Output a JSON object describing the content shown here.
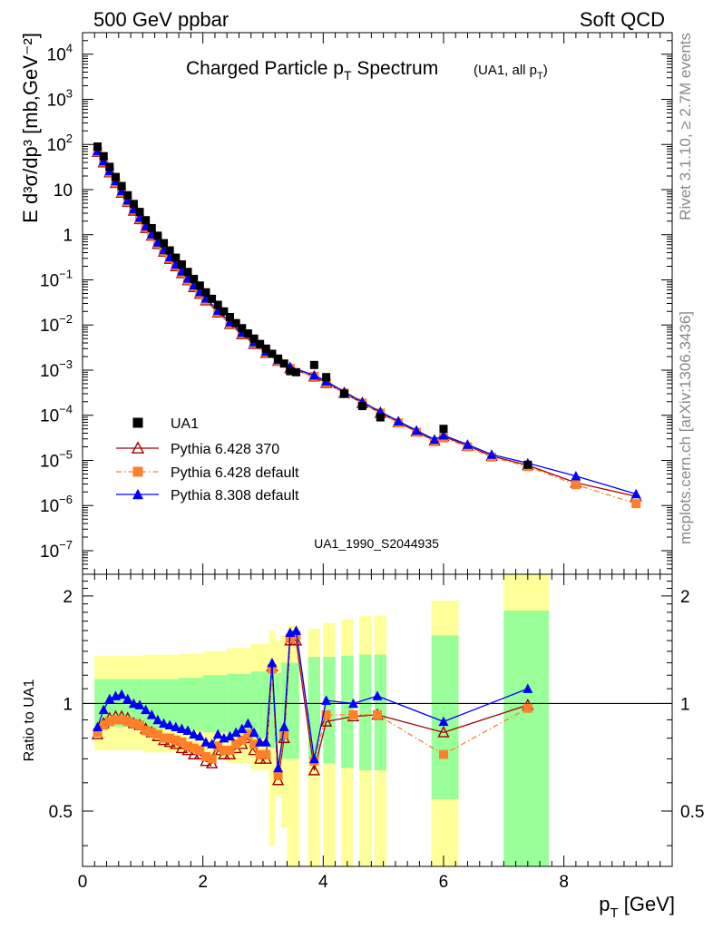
{
  "header": {
    "left": "500 GeV ppbar",
    "right": "Soft QCD"
  },
  "side": {
    "top": "Rivet 3.1.10, ≥ 2.7M events",
    "bottom": "mcplots.cern.ch [arXiv:1306.3436]"
  },
  "chart_data": [
    {
      "type": "scatter",
      "title": "Charged Particle p_T Spectrum",
      "title_note": "(UA1, all p_T)",
      "watermark": "UA1_1990_S2044935",
      "ylabel": "E d³σ/dp³ [mb,GeV⁻²]",
      "yscale": "log",
      "ylim": [
        3e-08,
        30000.0
      ],
      "xlim": [
        0,
        9.8
      ],
      "ytick_exponents": [
        -7,
        -6,
        -5,
        -4,
        -3,
        -2,
        -1,
        0,
        1,
        2,
        3,
        4
      ],
      "legend_position": "bottom-left",
      "series": [
        {
          "name": "UA1",
          "color": "#000000",
          "marker": "square",
          "x": [
            0.25,
            0.35,
            0.45,
            0.55,
            0.65,
            0.75,
            0.85,
            0.95,
            1.05,
            1.15,
            1.25,
            1.35,
            1.45,
            1.55,
            1.65,
            1.75,
            1.85,
            1.95,
            2.05,
            2.15,
            2.25,
            2.35,
            2.45,
            2.55,
            2.65,
            2.75,
            2.85,
            2.95,
            3.05,
            3.15,
            3.25,
            3.35,
            3.45,
            3.55,
            3.85,
            4.05,
            4.35,
            4.65,
            4.95,
            6.0,
            7.4
          ],
          "y": [
            90,
            55,
            32,
            19,
            12,
            7.5,
            4.8,
            3.2,
            2.1,
            1.4,
            0.95,
            0.65,
            0.45,
            0.31,
            0.22,
            0.15,
            0.105,
            0.075,
            0.053,
            0.038,
            0.028,
            0.02,
            0.015,
            0.011,
            0.0085,
            0.0065,
            0.005,
            0.0038,
            0.003,
            0.0023,
            0.0018,
            0.0014,
            0.00095,
            0.0009,
            0.0013,
            0.0007,
            0.0003,
            0.00016,
            9e-05,
            5e-05,
            8e-06
          ]
        },
        {
          "name": "Pythia 6.428 370",
          "color": "#a00000",
          "marker": "open-triangle",
          "x": [
            0.25,
            0.35,
            0.45,
            0.55,
            0.65,
            0.75,
            0.85,
            0.95,
            1.05,
            1.15,
            1.25,
            1.35,
            1.45,
            1.55,
            1.65,
            1.75,
            1.85,
            1.95,
            2.05,
            2.25,
            2.45,
            2.65,
            2.85,
            3.05,
            3.25,
            3.45,
            3.85,
            4.05,
            4.35,
            4.65,
            4.95,
            5.25,
            5.55,
            5.85,
            6.0,
            6.4,
            6.8,
            7.4,
            8.2,
            9.2
          ],
          "y": [
            68,
            40,
            24,
            14,
            8.5,
            5.3,
            3.4,
            2.2,
            1.4,
            0.95,
            0.62,
            0.42,
            0.29,
            0.2,
            0.14,
            0.098,
            0.069,
            0.049,
            0.035,
            0.019,
            0.0105,
            0.0062,
            0.0038,
            0.0024,
            0.0016,
            0.0011,
            0.00072,
            0.00052,
            0.00031,
            0.000185,
            0.000112,
            6.95e-05,
            4.35e-05,
            2.75e-05,
            3.4e-05,
            2.1e-05,
            1.25e-05,
            7.8e-06,
            3.2e-06,
            1.6e-06
          ]
        },
        {
          "name": "Pythia 6.428 default",
          "color": "#ff7f2a",
          "marker": "square",
          "dashed": true,
          "x": [
            0.25,
            0.35,
            0.45,
            0.55,
            0.65,
            0.75,
            0.85,
            0.95,
            1.05,
            1.15,
            1.25,
            1.35,
            1.45,
            1.55,
            1.65,
            1.75,
            1.85,
            1.95,
            2.05,
            2.25,
            2.45,
            2.65,
            2.85,
            3.05,
            3.25,
            3.45,
            3.85,
            4.05,
            4.35,
            4.65,
            4.95,
            5.25,
            5.55,
            5.85,
            6.0,
            6.4,
            6.8,
            7.4,
            8.2,
            9.2
          ],
          "y": [
            69,
            41,
            24.5,
            14.3,
            8.7,
            5.4,
            3.5,
            2.25,
            1.45,
            0.97,
            0.64,
            0.43,
            0.3,
            0.205,
            0.145,
            0.1,
            0.071,
            0.05,
            0.036,
            0.0195,
            0.0107,
            0.0063,
            0.0039,
            0.00245,
            0.0016,
            0.0011,
            0.00073,
            0.00053,
            0.00031,
            0.000186,
            0.000112,
            6.8e-05,
            4.2e-05,
            2.6e-05,
            3.15e-05,
            2e-05,
            1.18e-05,
            7.3e-06,
            2.9e-06,
            1.1e-06
          ]
        },
        {
          "name": "Pythia 8.308 default",
          "color": "#0000ff",
          "marker": "triangle",
          "x": [
            0.25,
            0.35,
            0.45,
            0.55,
            0.65,
            0.75,
            0.85,
            0.95,
            1.05,
            1.15,
            1.25,
            1.35,
            1.45,
            1.55,
            1.65,
            1.75,
            1.85,
            1.95,
            2.05,
            2.25,
            2.45,
            2.65,
            2.85,
            3.05,
            3.25,
            3.45,
            3.85,
            4.05,
            4.35,
            4.65,
            4.95,
            5.25,
            5.55,
            5.85,
            6.0,
            6.4,
            6.8,
            7.4,
            8.2,
            9.2
          ],
          "y": [
            72,
            43,
            26,
            15.5,
            9.3,
            5.8,
            3.7,
            2.4,
            1.55,
            1.03,
            0.68,
            0.46,
            0.32,
            0.22,
            0.155,
            0.108,
            0.076,
            0.054,
            0.039,
            0.021,
            0.0116,
            0.0068,
            0.0042,
            0.0026,
            0.0017,
            0.00118,
            0.00077,
            0.00057,
            0.00033,
            0.000198,
            0.00012,
            7.4e-05,
            4.6e-05,
            2.9e-05,
            3.6e-05,
            2.25e-05,
            1.35e-05,
            8.7e-06,
            4.5e-06,
            1.8e-06
          ]
        }
      ]
    },
    {
      "type": "scatter",
      "ylabel": "Ratio to UA1",
      "xlabel": "p_T [GeV]",
      "ylim": [
        0.35,
        2.3
      ],
      "xlim": [
        0,
        9.8
      ],
      "xticks": [
        0,
        2,
        4,
        6,
        8
      ],
      "ytick_labels": [
        "0.5",
        "1",
        "2"
      ],
      "yticks": [
        0.5,
        1,
        2
      ],
      "reference_line": 1,
      "bands": [
        {
          "x0": 0.2,
          "x1": 0.4,
          "stat": [
            0.86,
            1.17
          ],
          "tot": [
            0.74,
            1.36
          ]
        },
        {
          "x0": 0.4,
          "x1": 1.0,
          "stat": [
            0.86,
            1.17
          ],
          "tot": [
            0.74,
            1.36
          ]
        },
        {
          "x0": 1.0,
          "x1": 1.6,
          "stat": [
            0.85,
            1.17
          ],
          "tot": [
            0.73,
            1.37
          ]
        },
        {
          "x0": 1.6,
          "x1": 2.0,
          "stat": [
            0.84,
            1.18
          ],
          "tot": [
            0.72,
            1.38
          ]
        },
        {
          "x0": 2.0,
          "x1": 2.4,
          "stat": [
            0.83,
            1.2
          ],
          "tot": [
            0.7,
            1.4
          ]
        },
        {
          "x0": 2.4,
          "x1": 2.8,
          "stat": [
            0.82,
            1.21
          ],
          "tot": [
            0.68,
            1.43
          ]
        },
        {
          "x0": 2.8,
          "x1": 3.1,
          "stat": [
            0.8,
            1.23
          ],
          "tot": [
            0.65,
            1.47
          ]
        },
        {
          "x0": 3.1,
          "x1": 3.2,
          "stat": [
            0.75,
            1.25
          ],
          "tot": [
            0.4,
            1.6
          ]
        },
        {
          "x0": 3.2,
          "x1": 3.3,
          "stat": [
            0.78,
            1.22
          ],
          "tot": [
            0.55,
            1.5
          ]
        },
        {
          "x0": 3.3,
          "x1": 3.4,
          "stat": [
            0.7,
            1.3
          ],
          "tot": [
            0.45,
            1.55
          ]
        },
        {
          "x0": 3.4,
          "x1": 3.6,
          "stat": [
            0.7,
            1.3
          ],
          "tot": [
            0.35,
            1.65
          ]
        },
        {
          "x0": 3.75,
          "x1": 3.95,
          "stat": [
            0.7,
            1.35
          ],
          "tot": [
            0.35,
            1.62
          ]
        },
        {
          "x0": 4.0,
          "x1": 4.2,
          "stat": [
            0.68,
            1.35
          ],
          "tot": [
            0.35,
            1.68
          ]
        },
        {
          "x0": 4.3,
          "x1": 4.5,
          "stat": [
            0.66,
            1.36
          ],
          "tot": [
            0.35,
            1.72
          ]
        },
        {
          "x0": 4.6,
          "x1": 4.8,
          "stat": [
            0.65,
            1.37
          ],
          "tot": [
            0.35,
            1.76
          ]
        },
        {
          "x0": 4.85,
          "x1": 5.05,
          "stat": [
            0.65,
            1.37
          ],
          "tot": [
            0.35,
            1.76
          ]
        },
        {
          "x0": 5.8,
          "x1": 6.25,
          "stat": [
            0.54,
            1.55
          ],
          "tot": [
            0.35,
            1.94
          ]
        },
        {
          "x0": 7.0,
          "x1": 7.75,
          "stat": [
            0.35,
            1.82
          ],
          "tot": [
            0.35,
            2.3
          ]
        }
      ],
      "series": [
        {
          "name": "Pythia 6.428 370",
          "color": "#a00000",
          "marker": "open-triangle",
          "x": [
            0.25,
            0.35,
            0.45,
            0.55,
            0.65,
            0.75,
            0.85,
            0.95,
            1.05,
            1.15,
            1.25,
            1.35,
            1.45,
            1.55,
            1.65,
            1.75,
            1.85,
            1.95,
            2.05,
            2.15,
            2.25,
            2.35,
            2.45,
            2.55,
            2.65,
            2.75,
            2.85,
            2.95,
            3.05,
            3.15,
            3.25,
            3.35,
            3.45,
            3.55,
            3.85,
            4.05,
            4.5,
            4.9,
            6.0,
            7.4
          ],
          "y": [
            0.82,
            0.88,
            0.91,
            0.92,
            0.92,
            0.91,
            0.88,
            0.87,
            0.85,
            0.83,
            0.81,
            0.79,
            0.78,
            0.77,
            0.75,
            0.74,
            0.72,
            0.72,
            0.69,
            0.68,
            0.74,
            0.72,
            0.72,
            0.75,
            0.77,
            0.8,
            0.74,
            0.7,
            0.7,
            1.27,
            0.61,
            0.8,
            1.5,
            1.5,
            0.65,
            0.89,
            0.92,
            0.93,
            0.83,
            0.99
          ]
        },
        {
          "name": "Pythia 6.428 default",
          "color": "#ff7f2a",
          "marker": "square",
          "dashed": true,
          "x": [
            0.25,
            0.35,
            0.45,
            0.55,
            0.65,
            0.75,
            0.85,
            0.95,
            1.05,
            1.15,
            1.25,
            1.35,
            1.45,
            1.55,
            1.65,
            1.75,
            1.85,
            1.95,
            2.05,
            2.15,
            2.25,
            2.35,
            2.45,
            2.55,
            2.65,
            2.75,
            2.85,
            2.95,
            3.05,
            3.15,
            3.25,
            3.35,
            3.45,
            3.55,
            3.85,
            4.05,
            4.5,
            4.9,
            6.0,
            7.4
          ],
          "y": [
            0.83,
            0.87,
            0.89,
            0.9,
            0.9,
            0.89,
            0.88,
            0.87,
            0.84,
            0.83,
            0.82,
            0.8,
            0.8,
            0.79,
            0.78,
            0.76,
            0.75,
            0.74,
            0.71,
            0.7,
            0.76,
            0.74,
            0.74,
            0.77,
            0.79,
            0.82,
            0.77,
            0.72,
            0.72,
            1.25,
            0.63,
            0.82,
            1.52,
            1.55,
            0.69,
            0.93,
            0.93,
            0.93,
            0.72,
            0.97
          ]
        },
        {
          "name": "Pythia 8.308 default",
          "color": "#0000ff",
          "marker": "triangle",
          "x": [
            0.25,
            0.35,
            0.45,
            0.55,
            0.65,
            0.75,
            0.85,
            0.95,
            1.05,
            1.15,
            1.25,
            1.35,
            1.45,
            1.55,
            1.65,
            1.75,
            1.85,
            1.95,
            2.05,
            2.15,
            2.25,
            2.35,
            2.45,
            2.55,
            2.65,
            2.75,
            2.85,
            2.95,
            3.05,
            3.15,
            3.25,
            3.35,
            3.45,
            3.55,
            3.85,
            4.05,
            4.5,
            4.9,
            6.0,
            7.4
          ],
          "y": [
            0.86,
            0.96,
            1.03,
            1.05,
            1.06,
            1.03,
            1.0,
            0.99,
            0.96,
            0.93,
            0.9,
            0.88,
            0.87,
            0.86,
            0.85,
            0.84,
            0.82,
            0.81,
            0.78,
            0.77,
            0.82,
            0.8,
            0.81,
            0.83,
            0.85,
            0.88,
            0.83,
            0.78,
            0.78,
            1.3,
            0.66,
            0.86,
            1.58,
            1.6,
            0.7,
            1.02,
            1.0,
            1.05,
            0.89,
            1.1
          ]
        }
      ]
    }
  ]
}
